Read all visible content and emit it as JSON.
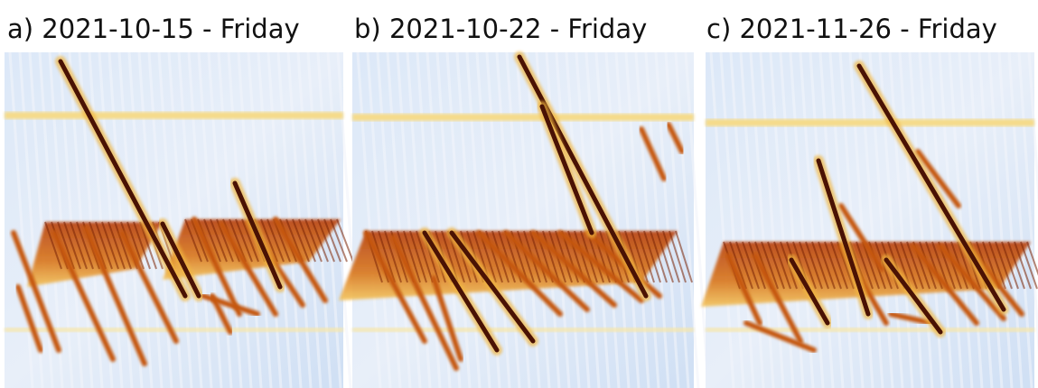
{
  "panels": [
    {
      "title": "a) 2021-10-15 - Friday"
    },
    {
      "title": "b) 2021-10-22 - Friday"
    },
    {
      "title": "c) 2021-11-26 - Friday"
    }
  ]
}
